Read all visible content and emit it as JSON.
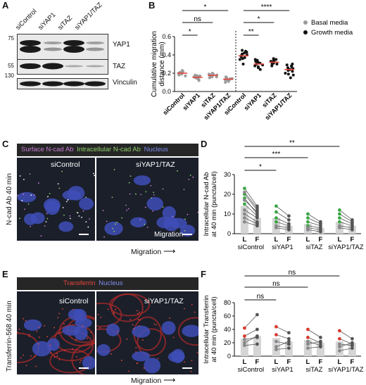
{
  "panels": {
    "A": "A",
    "B": "B",
    "C": "C",
    "D": "D",
    "E": "E",
    "F": "F"
  },
  "panel_a": {
    "lanes": [
      "siControl",
      "siYAP1",
      "siTAZ",
      "siYAP1/TAZ"
    ],
    "markers": [
      "75",
      "55",
      "130"
    ],
    "proteins": [
      "YAP1",
      "TAZ",
      "Vinculin"
    ]
  },
  "panel_c": {
    "channel_surface": "Surface N-cad Ab",
    "channel_intra": "Intracellular N-cad Ab",
    "channel_nucleus": "Nucleus",
    "side_label": "N-cad Ab 40 min",
    "image_left": "siControl",
    "image_right": "siYAP1/TAZ",
    "inset_label": "Migration",
    "arrow_label": "Migration"
  },
  "panel_e": {
    "channel_transferrin": "Transferrin",
    "channel_nucleus": "Nucleus",
    "side_label": "Transferrin-568 40 min",
    "image_left": "siControl",
    "image_right": "siYAP1/TAZ",
    "arrow_label": "Migration"
  },
  "colors": {
    "magenta": "#c77dd4",
    "green": "#8fd16a",
    "blue": "#6a7be8",
    "red": "#e8453c",
    "basal_dot": "#9a9a9a",
    "growth_dot": "#111111",
    "bar": "#d5d5d5"
  },
  "chart_data": [
    {
      "panel": "B",
      "type": "scatter",
      "ylabel": "Cumulative migration\ndistance (mm)",
      "ylim": [
        0,
        0.6
      ],
      "yticks": [
        "0.0",
        "0.2",
        "0.4",
        "0.6"
      ],
      "categories": [
        "siControl",
        "siYAP1",
        "siTAZ",
        "siYAP1/TAZ",
        "siControl",
        "siYAP1",
        "siTAZ",
        "siYAP1/TAZ"
      ],
      "legend": [
        "Basal media",
        "Growth media"
      ],
      "legend_placement": "right",
      "series": [
        {
          "name": "Basal media",
          "groups": [
            [
              0.2,
              0.22,
              0.18,
              0.21,
              0.19,
              0.23,
              0.2,
              0.17,
              0.22,
              0.21
            ],
            [
              0.15,
              0.17,
              0.13,
              0.16,
              0.14,
              0.18,
              0.12,
              0.16,
              0.15,
              0.17
            ],
            [
              0.17,
              0.19,
              0.16,
              0.18,
              0.15,
              0.2,
              0.17,
              0.18,
              0.16,
              0.19
            ],
            [
              0.13,
              0.15,
              0.1,
              0.14,
              0.12,
              0.16,
              0.11,
              0.15,
              0.13,
              0.14
            ]
          ]
        },
        {
          "name": "Growth media",
          "groups": [
            [
              0.41,
              0.45,
              0.35,
              0.4,
              0.38,
              0.43,
              0.3,
              0.39,
              0.42,
              0.36,
              0.44,
              0.37
            ],
            [
              0.33,
              0.3,
              0.26,
              0.35,
              0.28,
              0.32,
              0.24,
              0.31,
              0.29,
              0.34,
              0.27
            ],
            [
              0.33,
              0.36,
              0.3,
              0.34,
              0.31,
              0.32,
              0.28,
              0.35,
              0.33,
              0.3
            ],
            [
              0.27,
              0.3,
              0.18,
              0.25,
              0.22,
              0.28,
              0.15,
              0.24,
              0.2,
              0.26,
              0.23,
              0.29,
              0.19
            ]
          ]
        }
      ],
      "means": [
        0.2,
        0.155,
        0.175,
        0.135,
        0.39,
        0.3,
        0.32,
        0.24
      ],
      "significance": [
        {
          "from": 0,
          "to": 1,
          "label": "*"
        },
        {
          "from": 0,
          "to": 2,
          "label": "ns"
        },
        {
          "from": 0,
          "to": 3,
          "label": "*"
        },
        {
          "from": 4,
          "to": 5,
          "label": "**"
        },
        {
          "from": 4,
          "to": 6,
          "label": "*"
        },
        {
          "from": 4,
          "to": 7,
          "label": "****"
        }
      ]
    },
    {
      "panel": "D",
      "type": "bar",
      "ylabel": "Intracellular N-cad Ab\nat 40 min (puncta/cell)",
      "ylim": [
        0,
        30
      ],
      "yticks": [
        "0",
        "10",
        "20",
        "30"
      ],
      "groups": [
        "siControl",
        "siYAP1",
        "siTAZ",
        "siYAP1/TAZ"
      ],
      "sub_labels": [
        "L",
        "F"
      ],
      "bar_values": [
        [
          14,
          8
        ],
        [
          8,
          4
        ],
        [
          5,
          3
        ],
        [
          6,
          4
        ]
      ],
      "pairs": [
        [
          [
            23,
            14
          ],
          [
            20,
            12
          ],
          [
            18,
            10
          ],
          [
            15,
            9
          ],
          [
            12,
            8
          ],
          [
            10,
            6
          ],
          [
            8,
            5
          ],
          [
            6,
            4
          ],
          [
            21,
            13
          ],
          [
            17,
            11
          ]
        ],
        [
          [
            14,
            9
          ],
          [
            11,
            7
          ],
          [
            8,
            5
          ],
          [
            6,
            4
          ],
          [
            4,
            3
          ],
          [
            3,
            2
          ]
        ],
        [
          [
            10,
            6
          ],
          [
            8,
            5
          ],
          [
            6,
            4
          ],
          [
            4,
            3
          ],
          [
            3,
            2
          ],
          [
            2,
            1
          ]
        ],
        [
          [
            12,
            7
          ],
          [
            10,
            6
          ],
          [
            8,
            5
          ],
          [
            6,
            4
          ],
          [
            4,
            3
          ],
          [
            3,
            2
          ]
        ]
      ],
      "significance": [
        {
          "from": 0,
          "to": 1,
          "label": "*"
        },
        {
          "from": 0,
          "to": 2,
          "label": "***"
        },
        {
          "from": 0,
          "to": 3,
          "label": "**"
        }
      ]
    },
    {
      "panel": "F",
      "type": "bar",
      "ylabel": "Intracellular Transferrin\nat 40 min (puncta/cell)",
      "ylim": [
        0,
        80
      ],
      "yticks": [
        "0",
        "20",
        "40",
        "60",
        "80"
      ],
      "groups": [
        "siControl",
        "siYAP1",
        "siTAZ",
        "siYAP1/TAZ"
      ],
      "sub_labels": [
        "L",
        "F"
      ],
      "bar_values": [
        [
          26,
          30
        ],
        [
          27,
          22
        ],
        [
          24,
          20
        ],
        [
          22,
          20
        ]
      ],
      "pairs": [
        [
          [
            42,
            62
          ],
          [
            30,
            40
          ],
          [
            25,
            28
          ],
          [
            20,
            30
          ],
          [
            16,
            18
          ]
        ],
        [
          [
            44,
            35
          ],
          [
            32,
            26
          ],
          [
            22,
            18
          ],
          [
            14,
            22
          ],
          [
            10,
            12
          ]
        ],
        [
          [
            40,
            28
          ],
          [
            28,
            20
          ],
          [
            22,
            16
          ],
          [
            18,
            22
          ],
          [
            12,
            14
          ]
        ],
        [
          [
            38,
            26
          ],
          [
            26,
            18
          ],
          [
            18,
            16
          ],
          [
            14,
            20
          ],
          [
            8,
            12
          ]
        ]
      ],
      "significance": [
        {
          "from": 0,
          "to": 1,
          "label": "ns"
        },
        {
          "from": 0,
          "to": 2,
          "label": "ns"
        },
        {
          "from": 0,
          "to": 3,
          "label": "ns"
        }
      ]
    }
  ]
}
